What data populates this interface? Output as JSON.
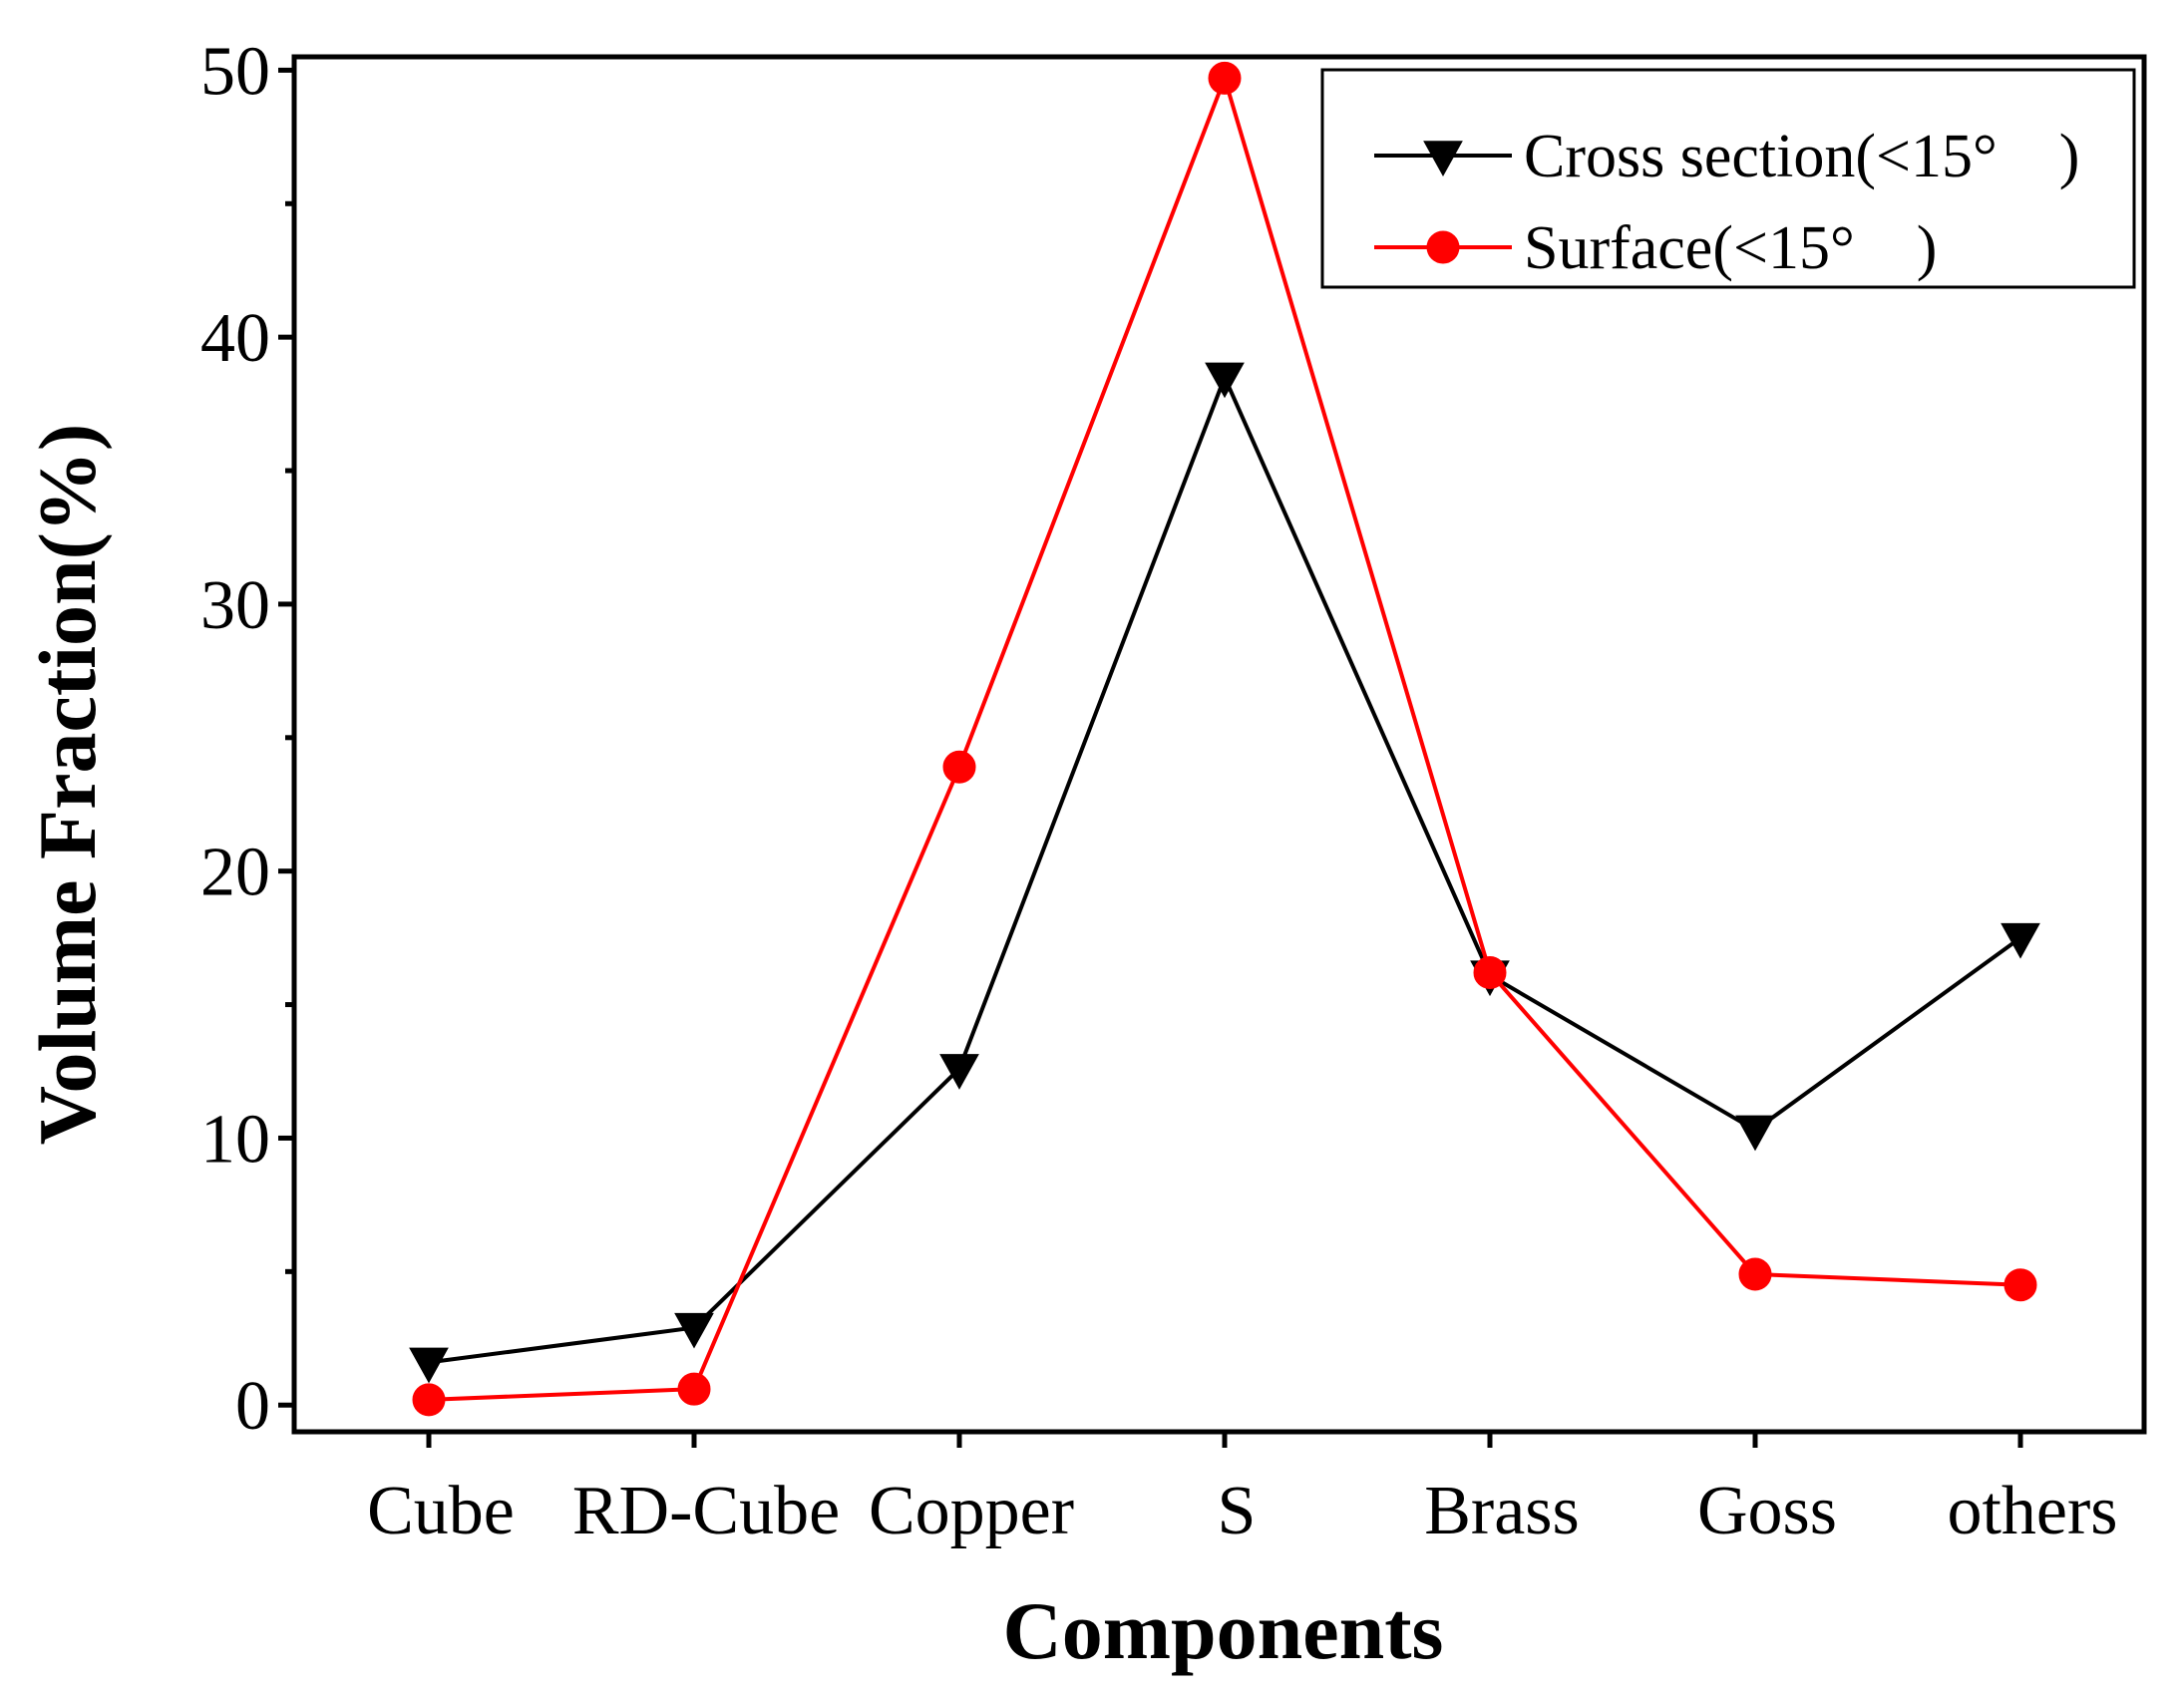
{
  "chart_data": {
    "type": "line",
    "title": "",
    "xlabel": "Components",
    "ylabel": "Volume Fraction(%)",
    "categories": [
      "Cube",
      "RD-Cube",
      "Copper",
      "S",
      "Brass",
      "Goss",
      "others"
    ],
    "ylim": [
      -1,
      50.5
    ],
    "yticks": [
      0,
      10,
      20,
      30,
      40,
      50
    ],
    "ytick_labels": [
      "0",
      "10",
      "20",
      "30",
      "40",
      "50"
    ],
    "grid": false,
    "legend_position": "top-right",
    "series": [
      {
        "name": "Cross section(<15°　)",
        "color": "#000000",
        "marker": "triangle-down",
        "values": [
          1.6,
          2.9,
          12.6,
          38.5,
          16.1,
          10.3,
          17.5
        ]
      },
      {
        "name": "Surface(<15°　)",
        "color": "#ff0000",
        "marker": "circle",
        "values": [
          0.2,
          0.6,
          23.9,
          49.7,
          16.2,
          4.9,
          4.5
        ]
      }
    ]
  }
}
